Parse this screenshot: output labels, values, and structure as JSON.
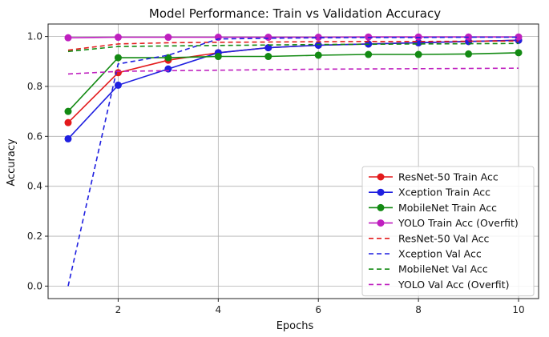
{
  "chart_data": {
    "type": "line",
    "title": "Model Performance: Train vs Validation Accuracy",
    "xlabel": "Epochs",
    "ylabel": "Accuracy",
    "xlim": [
      0.6,
      10.4
    ],
    "ylim": [
      -0.05,
      1.05
    ],
    "xticks": [
      2,
      4,
      6,
      8,
      10
    ],
    "yticks": [
      0.0,
      0.2,
      0.4,
      0.6,
      0.8,
      1.0
    ],
    "xtick_labels": [
      "2",
      "4",
      "6",
      "8",
      "10"
    ],
    "ytick_labels": [
      "0.0",
      "0.2",
      "0.4",
      "0.6",
      "0.8",
      "1.0"
    ],
    "grid": true,
    "legend_position": "lower-right",
    "x": [
      1,
      2,
      3,
      4,
      5,
      6,
      7,
      8,
      9,
      10
    ],
    "series": [
      {
        "name": "ResNet-50 Train Acc",
        "color": "#e31a1c",
        "style": "solid",
        "marker": true,
        "values": [
          0.655,
          0.855,
          0.905,
          0.935,
          0.955,
          0.965,
          0.97,
          0.975,
          0.98,
          0.985
        ]
      },
      {
        "name": "Xception Train Acc",
        "color": "#1f1fe0",
        "style": "solid",
        "marker": true,
        "values": [
          0.59,
          0.805,
          0.87,
          0.935,
          0.955,
          0.965,
          0.97,
          0.975,
          0.98,
          0.985
        ]
      },
      {
        "name": "MobileNet Train Acc",
        "color": "#138a13",
        "style": "solid",
        "marker": true,
        "values": [
          0.7,
          0.915,
          0.915,
          0.92,
          0.92,
          0.925,
          0.928,
          0.928,
          0.93,
          0.935
        ]
      },
      {
        "name": "YOLO Train Acc (Overfit)",
        "color": "#bf1fbf",
        "style": "solid",
        "marker": true,
        "values": [
          0.995,
          0.997,
          0.997,
          0.997,
          0.997,
          0.997,
          0.998,
          0.998,
          0.998,
          0.998
        ]
      },
      {
        "name": "ResNet-50 Val Acc",
        "color": "#e31a1c",
        "style": "dashed",
        "marker": false,
        "values": [
          0.945,
          0.97,
          0.975,
          0.977,
          0.978,
          0.979,
          0.98,
          0.98,
          0.981,
          0.982
        ]
      },
      {
        "name": "Xception Val Acc",
        "color": "#1f1fe0",
        "style": "dashed",
        "marker": false,
        "values": [
          0.0,
          0.89,
          0.925,
          0.99,
          0.993,
          0.995,
          0.996,
          0.996,
          0.997,
          0.997
        ]
      },
      {
        "name": "MobileNet Val Acc",
        "color": "#138a13",
        "style": "dashed",
        "marker": false,
        "values": [
          0.94,
          0.96,
          0.962,
          0.964,
          0.966,
          0.968,
          0.969,
          0.97,
          0.971,
          0.972
        ]
      },
      {
        "name": "YOLO Val Acc (Overfit)",
        "color": "#bf1fbf",
        "style": "dashed",
        "marker": false,
        "values": [
          0.85,
          0.86,
          0.863,
          0.865,
          0.867,
          0.869,
          0.87,
          0.871,
          0.872,
          0.873
        ]
      }
    ]
  }
}
